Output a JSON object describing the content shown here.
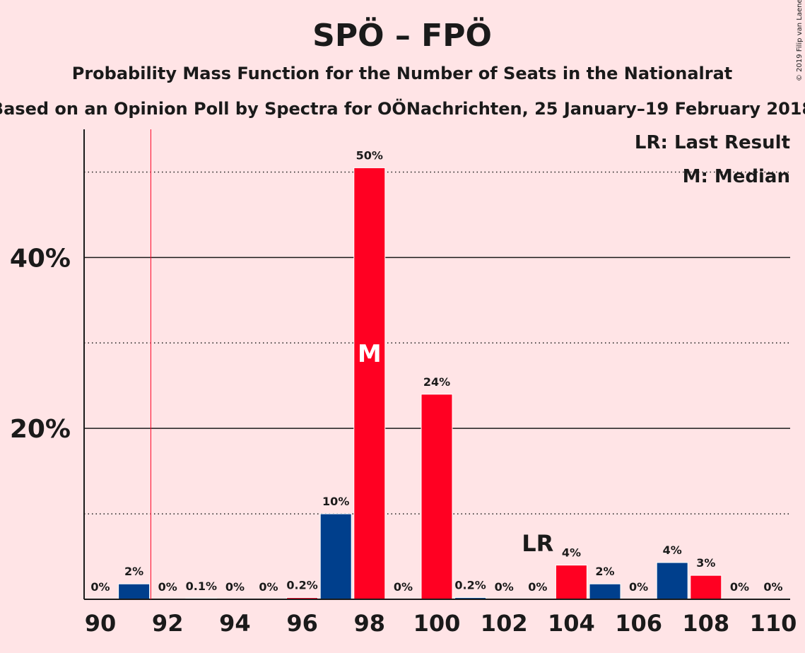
{
  "colors": {
    "spo": "#ff0022",
    "fpo": "#003f8c",
    "background": "#ffe4e6"
  },
  "header": {
    "title": "SPÖ – FPÖ",
    "subtitle": "Probability Mass Function for the Number of Seats in the Nationalrat",
    "subtitle2": "Based on an Opinion Poll by Spectra for OÖNachrichten, 25 January–19 February 2018",
    "copyright": "© 2019 Filip van Laenen"
  },
  "legend": {
    "lr": "LR: Last Result",
    "m": "M: Median"
  },
  "chart_data": {
    "type": "bar",
    "xlim": [
      90,
      110
    ],
    "ylim": [
      0,
      55
    ],
    "x_ticks": [
      "90",
      "92",
      "94",
      "96",
      "98",
      "100",
      "102",
      "104",
      "106",
      "108",
      "110"
    ],
    "y_ticks": [
      {
        "value": 20,
        "label": "20%"
      },
      {
        "value": 40,
        "label": "40%"
      }
    ],
    "minor_gridlines": [
      10,
      30,
      50
    ],
    "last_result": 91.5,
    "last_result_label": "LR",
    "median_seat": 98,
    "median_label": "M",
    "bars": [
      {
        "seat": 90,
        "value": 0,
        "label": "0%",
        "party": "fpo"
      },
      {
        "seat": 91,
        "value": 1.8,
        "label": "2%",
        "party": "fpo"
      },
      {
        "seat": 92,
        "value": 0,
        "label": "0%",
        "party": "spo"
      },
      {
        "seat": 93,
        "value": 0.1,
        "label": "0.1%",
        "party": "fpo"
      },
      {
        "seat": 94,
        "value": 0,
        "label": "0%",
        "party": "spo"
      },
      {
        "seat": 95,
        "value": 0,
        "label": "0%",
        "party": "fpo"
      },
      {
        "seat": 96,
        "value": 0.2,
        "label": "0.2%",
        "party": "spo"
      },
      {
        "seat": 97,
        "value": 10,
        "label": "10%",
        "party": "fpo"
      },
      {
        "seat": 98,
        "value": 50.5,
        "label": "50%",
        "party": "spo"
      },
      {
        "seat": 99,
        "value": 0,
        "label": "0%",
        "party": "fpo"
      },
      {
        "seat": 100,
        "value": 24,
        "label": "24%",
        "party": "spo"
      },
      {
        "seat": 101,
        "value": 0.2,
        "label": "0.2%",
        "party": "fpo"
      },
      {
        "seat": 102,
        "value": 0,
        "label": "0%",
        "party": "spo"
      },
      {
        "seat": 103,
        "value": 0,
        "label": "0%",
        "party": "fpo"
      },
      {
        "seat": 104,
        "value": 4,
        "label": "4%",
        "party": "spo"
      },
      {
        "seat": 105,
        "value": 1.8,
        "label": "2%",
        "party": "fpo"
      },
      {
        "seat": 106,
        "value": 0,
        "label": "0%",
        "party": "spo"
      },
      {
        "seat": 107,
        "value": 4.3,
        "label": "4%",
        "party": "fpo"
      },
      {
        "seat": 108,
        "value": 2.8,
        "label": "3%",
        "party": "spo"
      },
      {
        "seat": 109,
        "value": 0,
        "label": "0%",
        "party": "fpo"
      },
      {
        "seat": 110,
        "value": 0,
        "label": "0%",
        "party": "spo"
      }
    ]
  }
}
